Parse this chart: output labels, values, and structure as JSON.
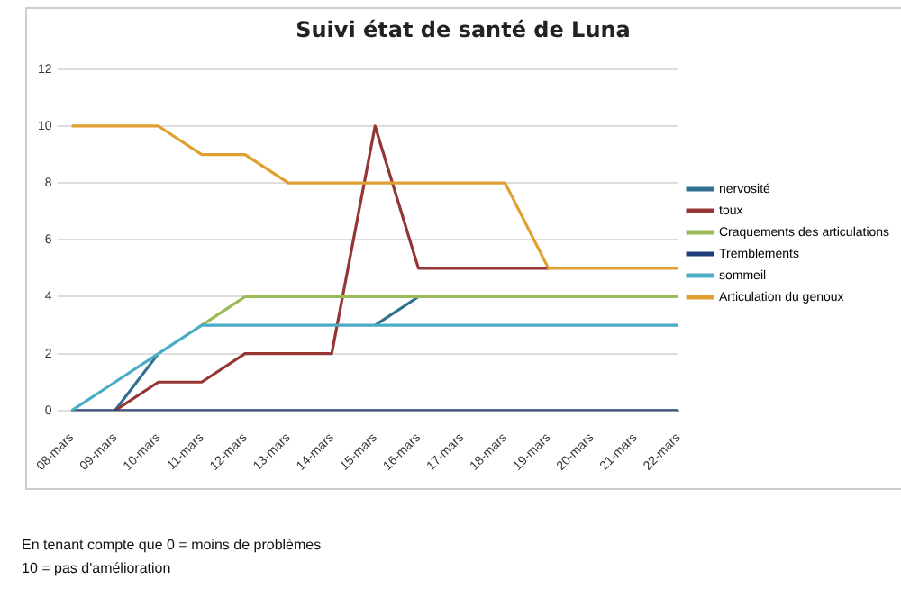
{
  "chart_data": {
    "type": "line",
    "title": "Suivi état de santé de Luna",
    "categories": [
      "08-mars",
      "09-mars",
      "10-mars",
      "11-mars",
      "12-mars",
      "13-mars",
      "14-mars",
      "15-mars",
      "16-mars",
      "17-mars",
      "18-mars",
      "19-mars",
      "20-mars",
      "21-mars",
      "22-mars"
    ],
    "series": [
      {
        "name": "nervosité",
        "color": "#31708f",
        "values": [
          null,
          0,
          2,
          null,
          null,
          null,
          null,
          3,
          4,
          null,
          null,
          null,
          null,
          null,
          null
        ]
      },
      {
        "name": "toux",
        "color": "#943634",
        "values": [
          null,
          0,
          1,
          1,
          2,
          2,
          2,
          10,
          5,
          5,
          5,
          5,
          null,
          null,
          null
        ]
      },
      {
        "name": "Craquements des articulations",
        "color": "#9bbb59",
        "values": [
          null,
          null,
          null,
          3,
          4,
          4,
          4,
          4,
          4,
          4,
          4,
          4,
          4,
          4,
          4
        ]
      },
      {
        "name": "Tremblements",
        "color": "#1f3d7a",
        "values": [
          0,
          0,
          0,
          0,
          0,
          0,
          0,
          0,
          0,
          0,
          0,
          0,
          0,
          0,
          0
        ]
      },
      {
        "name": "sommeil",
        "color": "#4bacc6",
        "values": [
          0,
          1,
          2,
          3,
          3,
          3,
          3,
          3,
          3,
          3,
          3,
          3,
          3,
          3,
          3
        ]
      },
      {
        "name": "Articulation du genoux",
        "color": "#e0a030",
        "values": [
          10,
          10,
          10,
          9,
          9,
          8,
          8,
          8,
          8,
          8,
          8,
          5,
          5,
          5,
          5
        ]
      }
    ],
    "ylim": [
      0,
      12
    ],
    "yticks": [
      0,
      2,
      4,
      6,
      8,
      10,
      12
    ],
    "grid": "y",
    "legend": "right",
    "marker": "none",
    "line_style": "solid",
    "annotations": [
      "En tenant compte que 0 = moins de problèmes",
      "10 = pas d'amélioration"
    ]
  }
}
